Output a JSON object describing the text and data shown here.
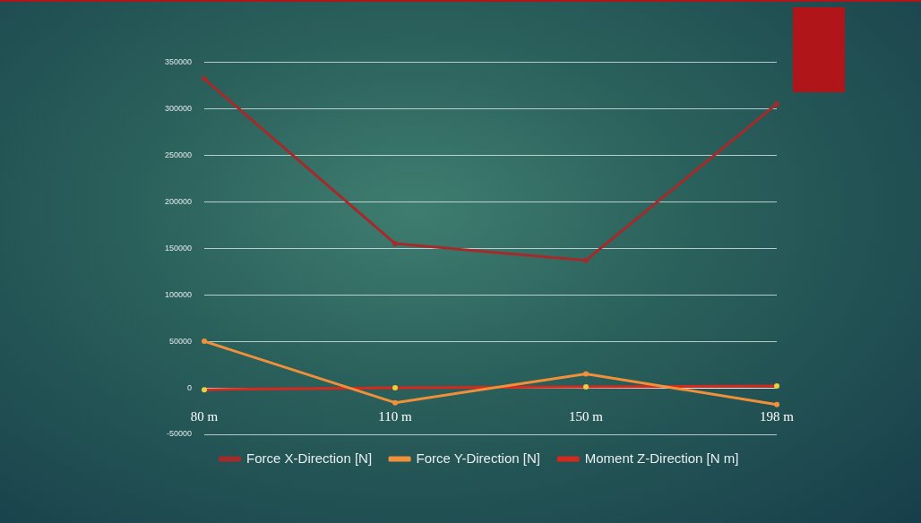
{
  "chart_data": {
    "type": "line",
    "categories": [
      "80 m",
      "110 m",
      "150 m",
      "198 m"
    ],
    "series": [
      {
        "name": "Force X-Direction [N]",
        "color": "#a52a2a",
        "values": [
          332000,
          155000,
          137000,
          305000
        ]
      },
      {
        "name": "Force Y-Direction [N]",
        "color": "#f0903a",
        "values": [
          50000,
          -16000,
          15000,
          -18000
        ]
      },
      {
        "name": "Moment Z-Direction [N m]",
        "color": "#d42a1e",
        "values": [
          -2000,
          0,
          1000,
          2000
        ]
      }
    ],
    "ylim": [
      -50000,
      350000
    ],
    "yticks": [
      -50000,
      0,
      50000,
      100000,
      150000,
      200000,
      250000,
      300000,
      350000
    ],
    "grid": "y",
    "legend": "bottom",
    "marker": "circle",
    "line_style": "solid"
  }
}
